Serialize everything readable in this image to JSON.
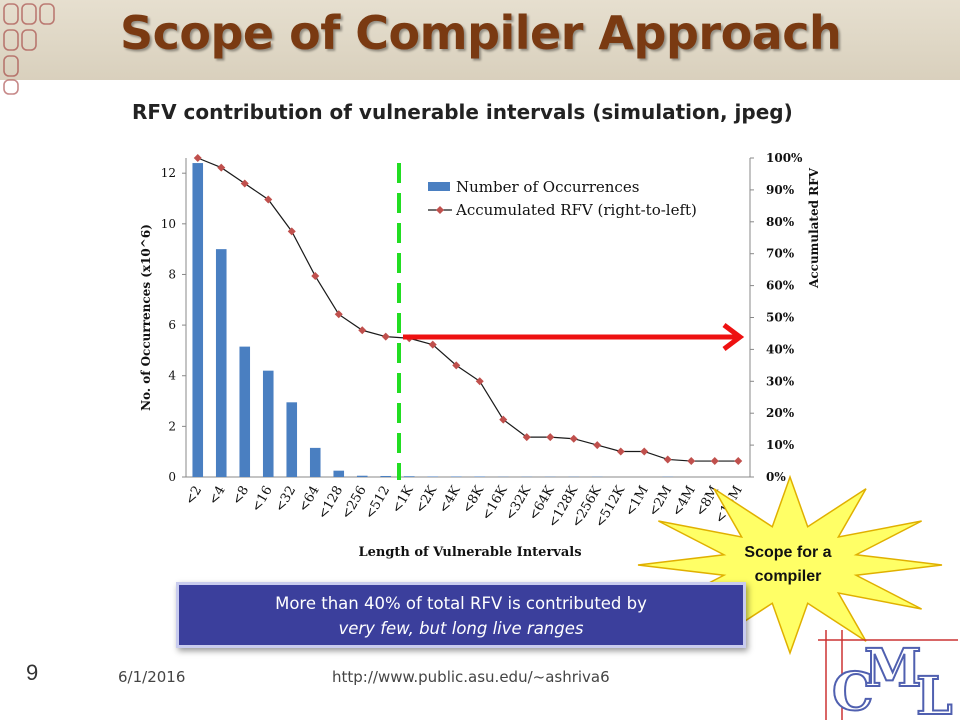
{
  "slide": {
    "title": "Scope of Compiler Approach",
    "subtitle": "RFV contribution of vulnerable intervals (simulation, jpeg)",
    "slide_number": "9",
    "date": "6/1/2016",
    "url": "http://www.public.asu.edu/~ashriva6",
    "callout_line1": "More than 40% of total RFV is contributed by",
    "callout_line2": "very few, but long live ranges",
    "starburst_text_line1": "Scope for a",
    "starburst_text_line2": "compiler",
    "logo_letters": [
      "C",
      "M",
      "L"
    ]
  },
  "colors": {
    "title": "#7a3a12",
    "bar": "#4a7fc1",
    "line": "#1a1a1a",
    "marker": "#c0504d",
    "threshold_line": "#22dd22",
    "arrow": "#ee1111",
    "callout_bg": "#3b3f9c",
    "starburst": "#ffff66"
  },
  "chart_data": {
    "type": "bar",
    "xlabel": "Length of Vulnerable Intervals",
    "ylabel": "No. of Occurrences (x10^6)",
    "y2label": "Accumulated RFV",
    "categories": [
      "<2",
      "<4",
      "<8",
      "<16",
      "<32",
      "<64",
      "<128",
      "<256",
      "<512",
      "<1K",
      "<2K",
      "<4K",
      "<8K",
      "<16K",
      "<32K",
      "<64K",
      "<128K",
      "<256K",
      "<512K",
      "<1M",
      "<2M",
      "<4M",
      "<8M",
      "<16M"
    ],
    "ylim": [
      0,
      12.6
    ],
    "yticks": [
      "0",
      "2",
      "4",
      "6",
      "8",
      "10",
      "12"
    ],
    "y2lim": [
      0,
      100
    ],
    "y2ticks": [
      "0%",
      "10%",
      "20%",
      "30%",
      "40%",
      "50%",
      "60%",
      "70%",
      "80%",
      "90%",
      "100%"
    ],
    "legend_position": "top-right",
    "series": [
      {
        "name": "Number of Occurrences",
        "type": "bar",
        "axis": "left",
        "values": [
          12.4,
          9.0,
          5.15,
          4.2,
          2.95,
          1.15,
          0.25,
          0.05,
          0.04,
          0.03,
          0.02,
          0.02,
          0.02,
          0.01,
          0.01,
          0.01,
          0.01,
          0.01,
          0.0,
          0.0,
          0.01,
          0.0,
          0.0,
          0.0
        ]
      },
      {
        "name": "Accumulated RFV (right-to-left)",
        "type": "line",
        "axis": "right",
        "values": [
          100,
          97,
          92,
          87,
          77,
          63,
          51,
          46,
          44,
          43.5,
          41.5,
          35,
          30,
          18,
          12.5,
          12.5,
          12,
          10,
          8,
          8,
          5.5,
          5,
          5,
          5
        ]
      }
    ]
  }
}
